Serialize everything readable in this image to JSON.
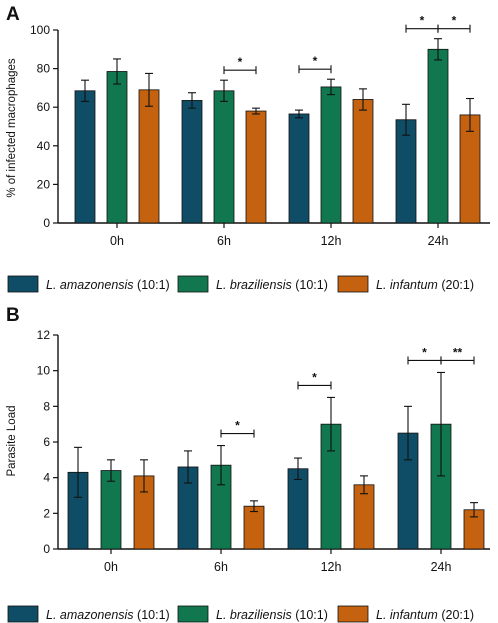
{
  "colors": {
    "amazonensis": "#0f4d67",
    "braziliensis": "#11774f",
    "infantum": "#c4620f",
    "axis": "#111111"
  },
  "legend": [
    {
      "species": "L. amazonensis",
      "ratio": "(10:1)",
      "color_key": "amazonensis"
    },
    {
      "species": "L. braziliensis",
      "ratio": "(10:1)",
      "color_key": "braziliensis"
    },
    {
      "species": "L. infantum",
      "ratio": "(20:1)",
      "color_key": "infantum"
    }
  ],
  "chart_data": [
    {
      "type": "bar",
      "panel_label": "A",
      "ylabel": "% of infected macrophages",
      "xlabel": "",
      "ylim": [
        0,
        100
      ],
      "yticks": [
        0,
        20,
        40,
        60,
        80,
        100
      ],
      "categories": [
        "0h",
        "6h",
        "12h",
        "24h"
      ],
      "series": [
        {
          "name": "L. amazonensis (10:1)",
          "color_key": "amazonensis",
          "values": [
            68.5,
            63.5,
            56.5,
            53.5
          ],
          "errors": [
            5.5,
            4.0,
            2.0,
            8.0
          ]
        },
        {
          "name": "L. braziliensis (10:1)",
          "color_key": "braziliensis",
          "values": [
            78.5,
            68.5,
            70.5,
            90.0
          ],
          "errors": [
            6.5,
            5.5,
            4.0,
            5.5
          ]
        },
        {
          "name": "L. infantum (20:1)",
          "color_key": "infantum",
          "values": [
            69.0,
            58.0,
            64.0,
            56.0
          ],
          "errors": [
            8.5,
            1.5,
            5.5,
            8.5
          ]
        }
      ],
      "significance": [
        {
          "category": "6h",
          "from_series": 1,
          "to_series": 2,
          "label": "*"
        },
        {
          "category": "12h",
          "from_series": 0,
          "to_series": 1,
          "label": "*"
        },
        {
          "category": "24h",
          "from_series": 0,
          "to_series": 1,
          "label": "*"
        },
        {
          "category": "24h",
          "from_series": 1,
          "to_series": 2,
          "label": "*"
        }
      ]
    },
    {
      "type": "bar",
      "panel_label": "B",
      "ylabel": "Parasite Load",
      "xlabel": "",
      "ylim": [
        0,
        12
      ],
      "yticks": [
        0,
        2,
        4,
        6,
        8,
        10,
        12
      ],
      "categories": [
        "0h",
        "6h",
        "12h",
        "24h"
      ],
      "series": [
        {
          "name": "L. amazonensis (10:1)",
          "color_key": "amazonensis",
          "values": [
            4.3,
            4.6,
            4.5,
            6.5
          ],
          "errors": [
            1.4,
            0.9,
            0.6,
            1.5
          ]
        },
        {
          "name": "L. braziliensis (10:1)",
          "color_key": "braziliensis",
          "values": [
            4.4,
            4.7,
            7.0,
            7.0
          ],
          "errors": [
            0.6,
            1.1,
            1.5,
            2.9
          ]
        },
        {
          "name": "L. infantum (20:1)",
          "color_key": "infantum",
          "values": [
            4.1,
            2.4,
            3.6,
            2.2
          ],
          "errors": [
            0.9,
            0.3,
            0.5,
            0.4
          ]
        }
      ],
      "significance": [
        {
          "category": "6h",
          "from_series": 1,
          "to_series": 2,
          "label": "*"
        },
        {
          "category": "12h",
          "from_series": 0,
          "to_series": 1,
          "label": "*"
        },
        {
          "category": "24h",
          "from_series": 0,
          "to_series": 1,
          "label": "*"
        },
        {
          "category": "24h",
          "from_series": 1,
          "to_series": 2,
          "label": "**"
        }
      ]
    }
  ]
}
